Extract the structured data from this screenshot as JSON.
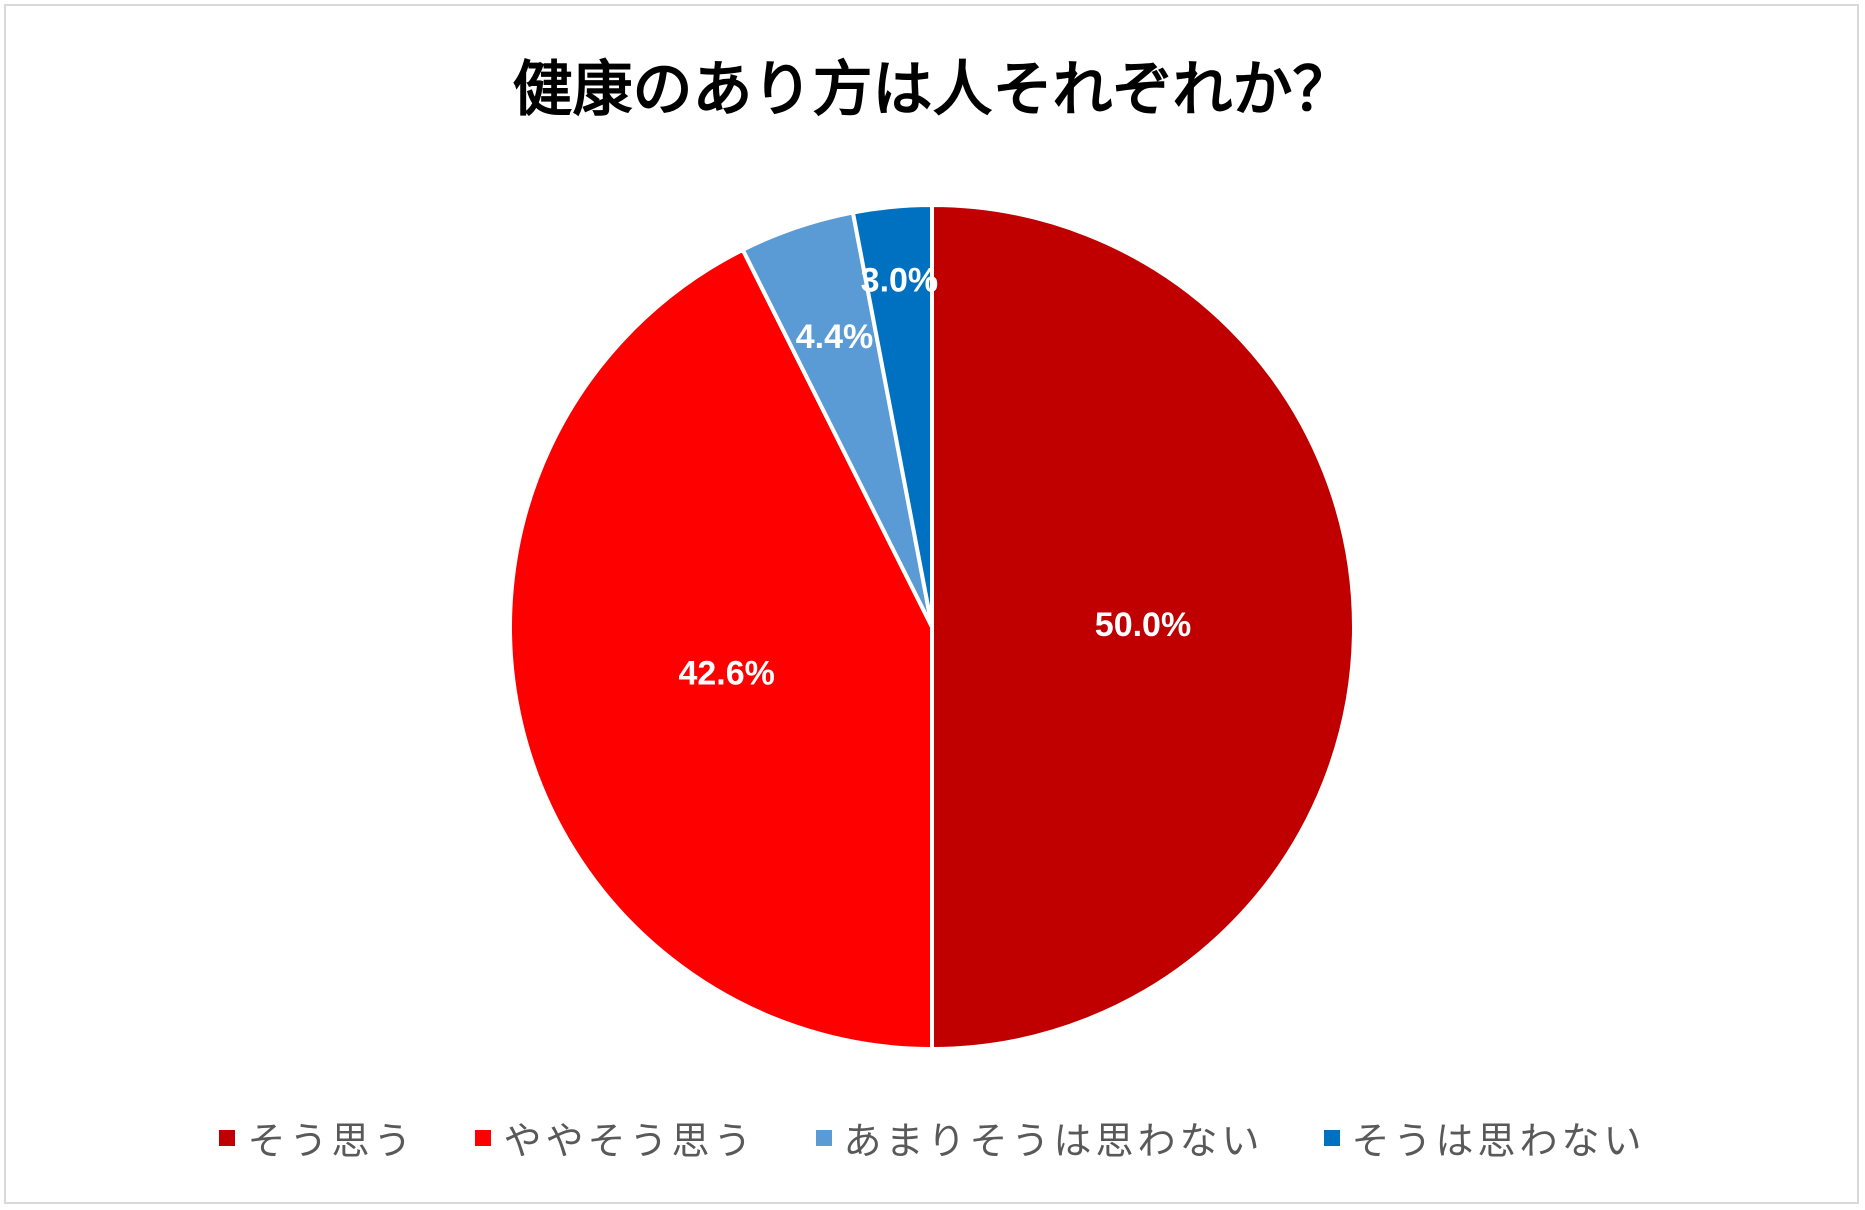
{
  "chart_data": {
    "type": "pie",
    "title": "健康のあり方は人それぞれか？",
    "categories": [
      "そう思う",
      "ややそう思う",
      "あまりそうは思わない",
      "そうは思わない"
    ],
    "values": [
      50.0,
      42.6,
      4.4,
      3.0
    ],
    "data_labels": [
      "50.0%",
      "42.6%",
      "4.4%",
      "3.0%"
    ],
    "colors": [
      "#C00000",
      "#FF0000",
      "#5B9BD5",
      "#0070C0"
    ],
    "legend_position": "bottom",
    "start_angle": "12 o'clock, clockwise"
  }
}
